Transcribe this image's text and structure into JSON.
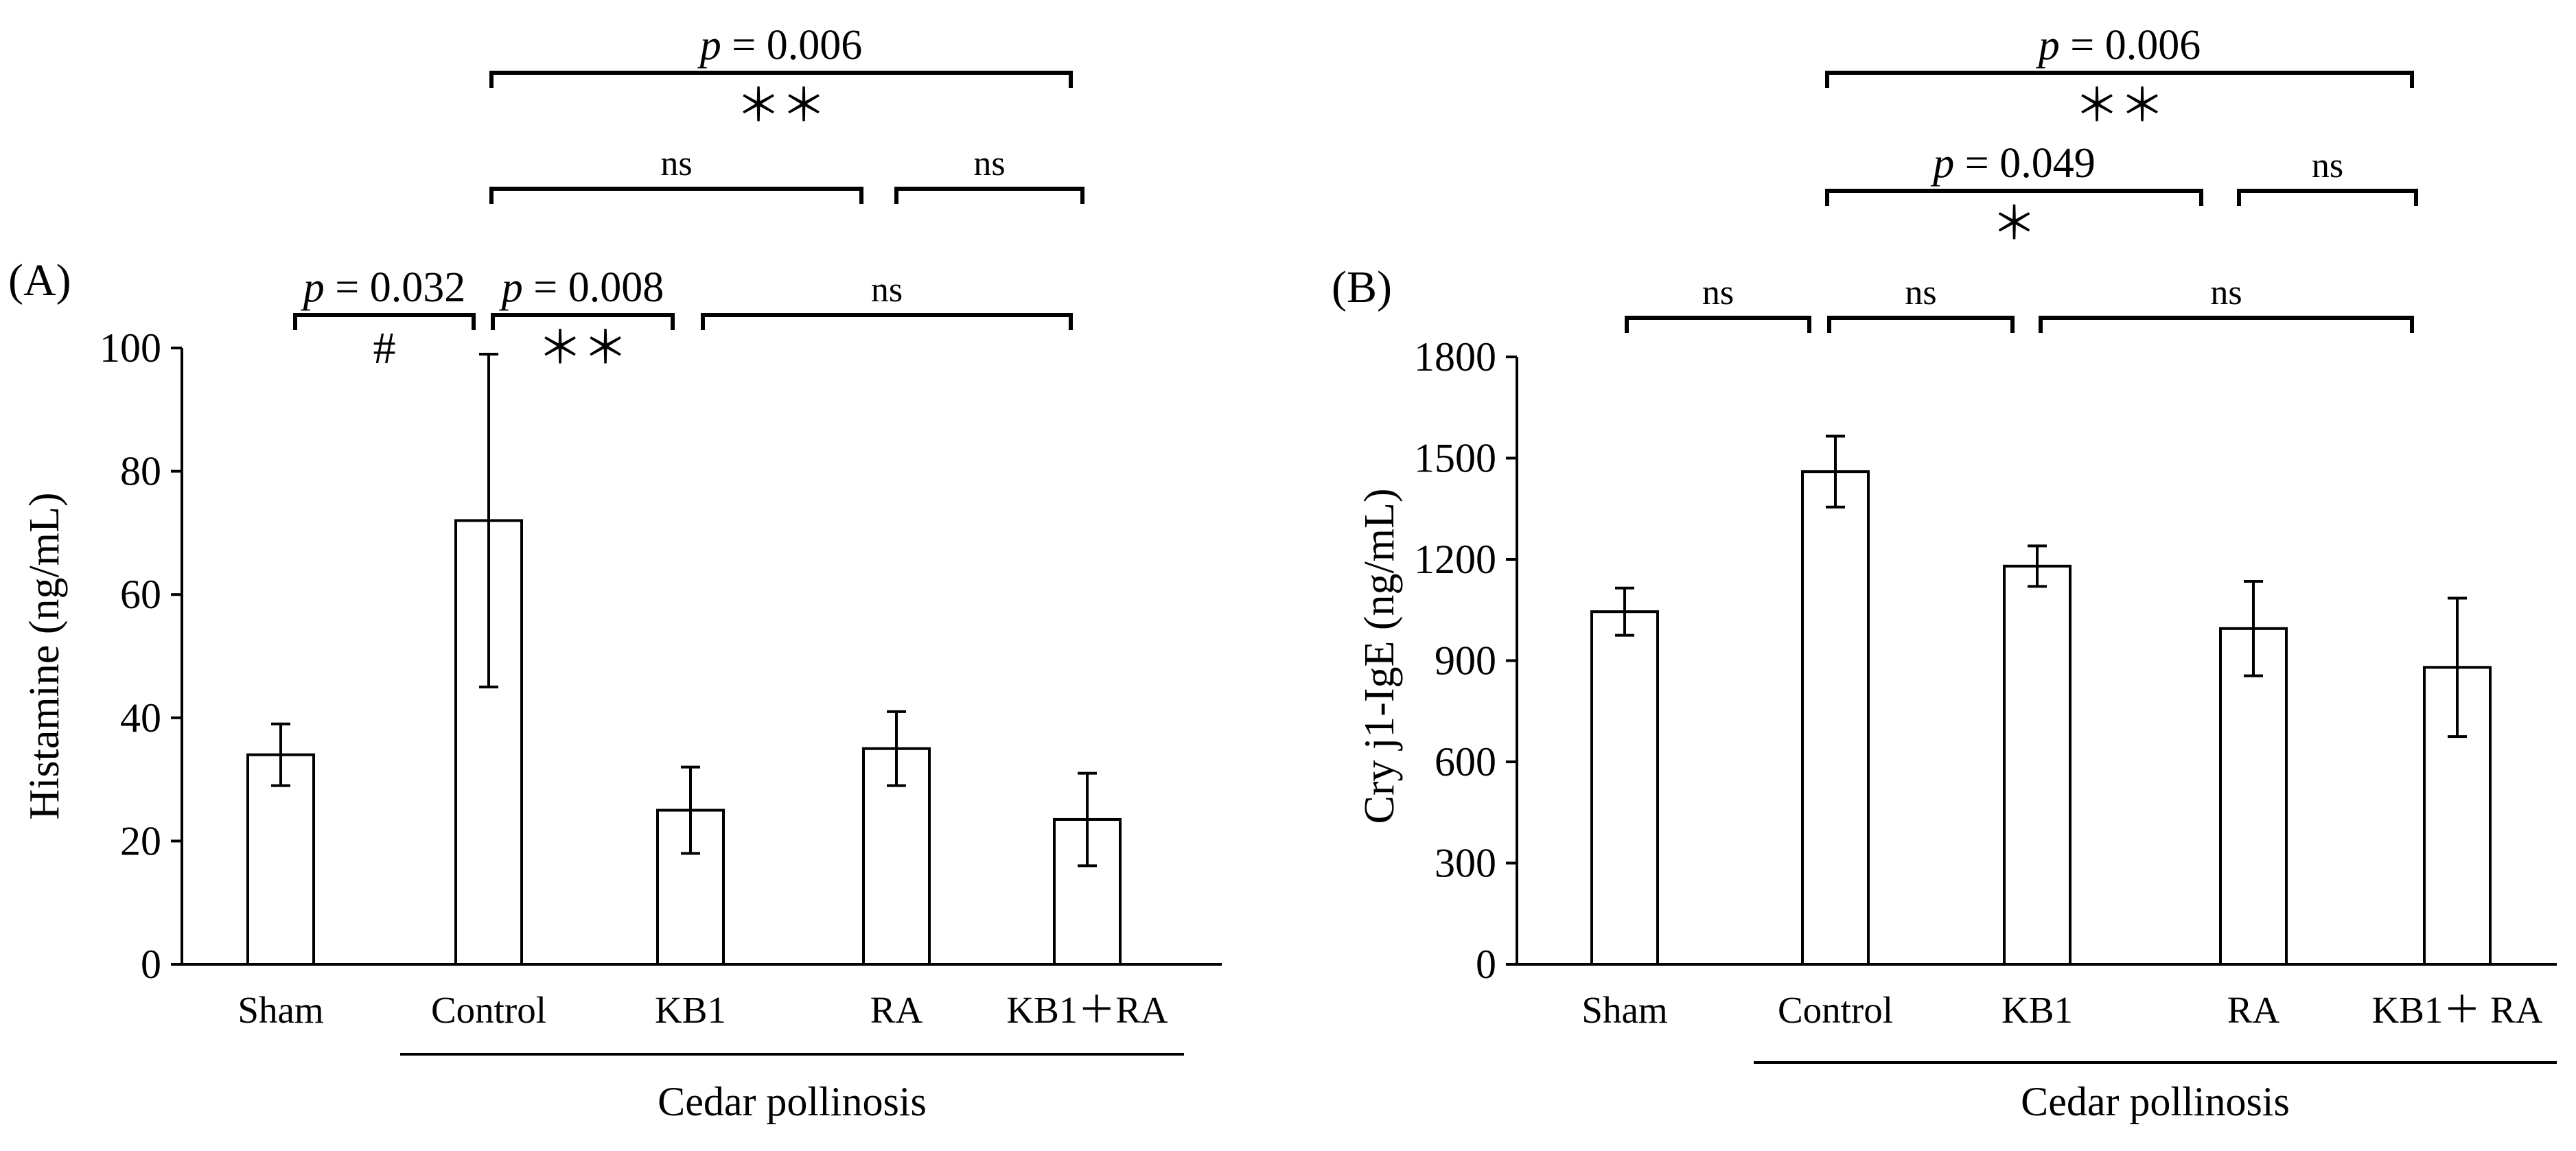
{
  "chart_data": [
    {
      "type": "bar",
      "panel_label": "(A)",
      "ylabel": "Histamine (ng/mL)",
      "ylim": [
        0,
        100
      ],
      "yticks": [
        "0",
        "20",
        "40",
        "60",
        "80",
        "100"
      ],
      "categories": [
        "Sham",
        "Control",
        "KB1",
        "RA",
        "KB1＋RA"
      ],
      "values": [
        34,
        72,
        25,
        35,
        23.5
      ],
      "errors": [
        5,
        27,
        7,
        6,
        7.5
      ],
      "group_label": "Cedar pollinosis",
      "bar_color": "#ffffff",
      "line_color": "#000000",
      "annotations": [
        {
          "from": 0,
          "to": 1,
          "p": "0.032",
          "mark": "#"
        },
        {
          "from": 1,
          "to": 2,
          "p": "0.008",
          "mark": "＊＊"
        },
        {
          "from": 2,
          "to": 4,
          "text": "ns"
        },
        {
          "from": 1,
          "to": 3,
          "text": "ns"
        },
        {
          "from": 3,
          "to": 4,
          "text": "ns"
        },
        {
          "from": 1,
          "to": 4,
          "p": "0.006",
          "mark": "＊＊"
        }
      ]
    },
    {
      "type": "bar",
      "panel_label": "(B)",
      "ylabel": "Cry j1-IgE (ng/mL)",
      "ylim": [
        0,
        1800
      ],
      "yticks": [
        "0",
        "300",
        "600",
        "900",
        "1200",
        "1500",
        "1800"
      ],
      "categories": [
        "Sham",
        "Control",
        "KB1",
        "RA",
        "KB1＋ RA"
      ],
      "values": [
        1045,
        1460,
        1180,
        995,
        880
      ],
      "errors": [
        70,
        105,
        60,
        140,
        205
      ],
      "group_label": "Cedar pollinosis",
      "bar_color": "#ffffff",
      "line_color": "#000000",
      "annotations": [
        {
          "from": 0,
          "to": 1,
          "text": "ns"
        },
        {
          "from": 1,
          "to": 2,
          "text": "ns"
        },
        {
          "from": 2,
          "to": 4,
          "text": "ns"
        },
        {
          "from": 1,
          "to": 3,
          "p": "0.049",
          "mark": "＊"
        },
        {
          "from": 3,
          "to": 4,
          "text": "ns"
        },
        {
          "from": 1,
          "to": 4,
          "p": "0.006",
          "mark": "＊＊"
        }
      ]
    }
  ],
  "p_prefix": "p",
  "p_equals": " = "
}
